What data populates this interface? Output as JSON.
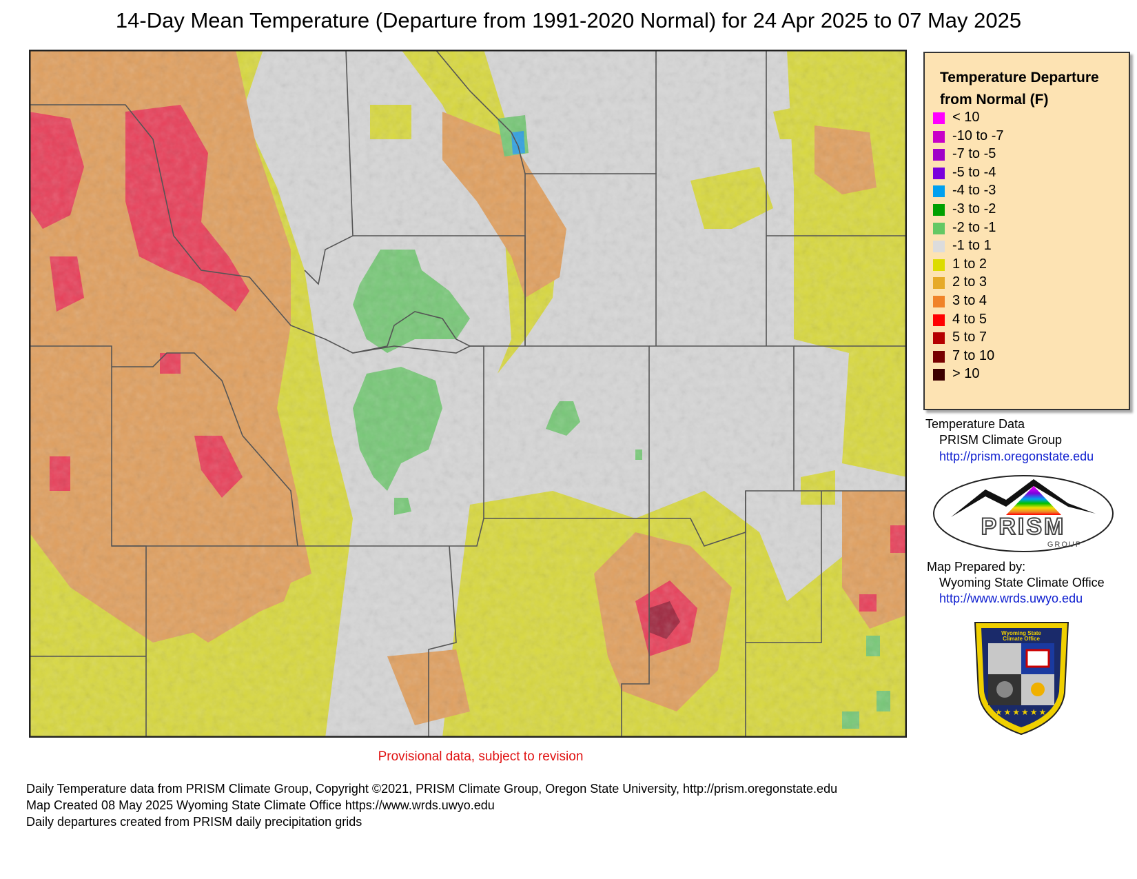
{
  "title": "14-Day Mean Temperature (Departure from 1991-2020 Normal) for 24 Apr 2025 to 07 May 2025",
  "legend": {
    "title_line1": "Temperature Departure",
    "title_line2": "from Normal (F)",
    "items": [
      {
        "label": "< 10",
        "color": "#ff00ff"
      },
      {
        "label": "-10 to -7",
        "color": "#c800c8"
      },
      {
        "label": "-7 to -5",
        "color": "#a000c8"
      },
      {
        "label": "-5 to -4",
        "color": "#7a00dc"
      },
      {
        "label": "-4 to -3",
        "color": "#00a0f0"
      },
      {
        "label": "-3 to -2",
        "color": "#00a000"
      },
      {
        "label": "-2 to -1",
        "color": "#64c864"
      },
      {
        "label": "-1 to 1",
        "color": "#dcdcdc"
      },
      {
        "label": "1 to 2",
        "color": "#dcdc00"
      },
      {
        "label": "2 to 3",
        "color": "#e6aa28"
      },
      {
        "label": "3 to 4",
        "color": "#f08228"
      },
      {
        "label": "4 to 5",
        "color": "#ff0000"
      },
      {
        "label": "5 to 7",
        "color": "#b40000"
      },
      {
        "label": "7 to 10",
        "color": "#780000"
      },
      {
        "label": "> 10",
        "color": "#3c0000"
      }
    ]
  },
  "credits": {
    "temp_label": "Temperature Data",
    "temp_source": "PRISM Climate Group",
    "temp_url": "http://prism.oregonstate.edu",
    "prep_label": "Map Prepared by:",
    "prep_source": "Wyoming State Climate Office",
    "prep_url": "http://www.wrds.uwyo.edu"
  },
  "logos": {
    "prism_text": "PRISM",
    "prism_sub": "GROUP",
    "wsco_line1": "Wyoming State",
    "wsco_line2": "Climate Office"
  },
  "provisional": "Provisional data, subject to revision",
  "footer": [
    "Daily Temperature data from PRISM Climate Group, Copyright ©2021, PRISM Climate Group, Oregon State University, http://prism.oregonstate.edu",
    "Map Created 08 May 2025 Wyoming State Climate Office https://www.wrds.uwyo.edu",
    "Daily departures created from PRISM daily precipitation grids"
  ],
  "colors": {
    "neutral": "#d6d6d6",
    "slight_warm": "#d8d840",
    "warm": "#e0a060",
    "hot": "#e8405a",
    "very_hot": "#a02840",
    "cool": "#78c878",
    "cold": "#40b040",
    "colder": "#30a0e0",
    "border": "#555555"
  }
}
